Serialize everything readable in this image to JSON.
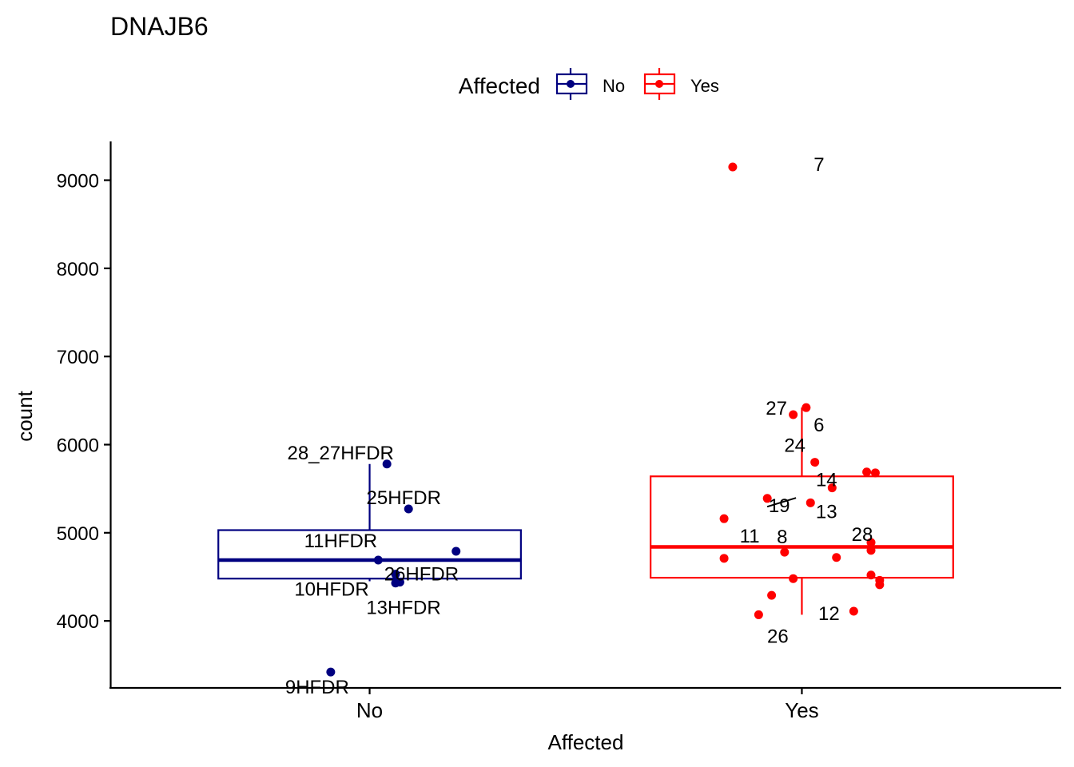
{
  "chart_data": {
    "type": "boxplot",
    "title": "DNAJB6",
    "xlabel": "Affected",
    "ylabel": "count",
    "ylim": [
      3240,
      9440
    ],
    "yticks": [
      4000,
      5000,
      6000,
      7000,
      8000,
      9000
    ],
    "categories": [
      "No",
      "Yes"
    ],
    "legend": {
      "title": "Affected",
      "position": "top",
      "entries": [
        {
          "label": "No",
          "color": "#000080"
        },
        {
          "label": "Yes",
          "color": "#ff0000"
        }
      ]
    },
    "series": [
      {
        "name": "No",
        "color": "#000080",
        "box": {
          "whisker_low": 4450,
          "q1": 4480,
          "median": 4690,
          "q3": 5030,
          "whisker_high": 5780
        },
        "points": [
          {
            "label": "28_27HFDR",
            "jitter": 0.04,
            "value": 5780
          },
          {
            "label": "25HFDR",
            "jitter": 0.09,
            "value": 5270
          },
          {
            "label": "",
            "jitter": 0.2,
            "value": 4790
          },
          {
            "label": "11HFDR",
            "jitter": 0.02,
            "value": 4690
          },
          {
            "label": "10HFDR",
            "jitter": 0.06,
            "value": 4530
          },
          {
            "label": "26HFDR",
            "jitter": 0.07,
            "value": 4440
          },
          {
            "label": "13HFDR",
            "jitter": 0.06,
            "value": 4430
          },
          {
            "label": "9HFDR",
            "jitter": -0.09,
            "value": 3420
          }
        ]
      },
      {
        "name": "Yes",
        "color": "#ff0000",
        "box": {
          "whisker_low": 4070,
          "q1": 4490,
          "median": 4840,
          "q3": 5640,
          "whisker_high": 6420
        },
        "points": [
          {
            "label": "7",
            "jitter": -0.16,
            "value": 9150
          },
          {
            "label": "6",
            "jitter": 0.01,
            "value": 6420
          },
          {
            "label": "27",
            "jitter": -0.02,
            "value": 6340
          },
          {
            "label": "24",
            "jitter": 0.03,
            "value": 5800
          },
          {
            "label": "",
            "jitter": 0.15,
            "value": 5690
          },
          {
            "label": "",
            "jitter": 0.17,
            "value": 5680
          },
          {
            "label": "14",
            "jitter": 0.07,
            "value": 5510
          },
          {
            "label": "19",
            "jitter": -0.08,
            "value": 5390
          },
          {
            "label": "13",
            "jitter": 0.02,
            "value": 5340
          },
          {
            "label": "11",
            "jitter": -0.18,
            "value": 5160
          },
          {
            "label": "28",
            "jitter": 0.16,
            "value": 4890
          },
          {
            "label": "",
            "jitter": 0.16,
            "value": 4800
          },
          {
            "label": "8",
            "jitter": -0.04,
            "value": 4780
          },
          {
            "label": "",
            "jitter": 0.08,
            "value": 4720
          },
          {
            "label": "",
            "jitter": -0.18,
            "value": 4710
          },
          {
            "label": "",
            "jitter": 0.16,
            "value": 4520
          },
          {
            "label": "",
            "jitter": -0.02,
            "value": 4480
          },
          {
            "label": "",
            "jitter": 0.18,
            "value": 4460
          },
          {
            "label": "",
            "jitter": 0.18,
            "value": 4410
          },
          {
            "label": "",
            "jitter": -0.07,
            "value": 4290
          },
          {
            "label": "12",
            "jitter": 0.12,
            "value": 4110
          },
          {
            "label": "26",
            "jitter": -0.1,
            "value": 4070
          }
        ]
      }
    ]
  }
}
